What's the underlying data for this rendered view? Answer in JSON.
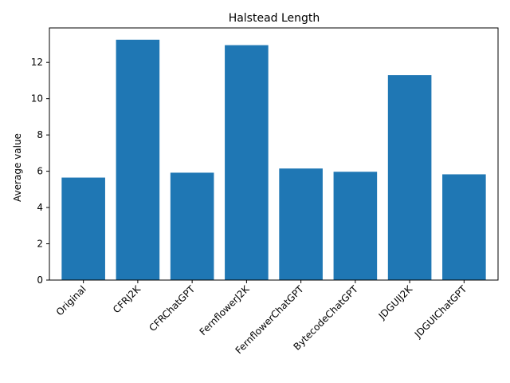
{
  "chart_data": {
    "type": "bar",
    "title": "Halstead Length",
    "xlabel": "",
    "ylabel": "Average value",
    "categories": [
      "Original",
      "CFRJ2K",
      "CFRChatGPT",
      "FernflowerJ2K",
      "FernflowerChatGPT",
      "BytecodeChatGPT",
      "JDGUIJ2K",
      "JDGUIChatGPT"
    ],
    "values": [
      5.65,
      13.25,
      5.92,
      12.95,
      6.15,
      5.97,
      11.3,
      5.83
    ],
    "ylim": [
      0,
      13.9
    ],
    "yticks": [
      0,
      2,
      4,
      6,
      8,
      10,
      12
    ],
    "bar_color": "#1f77b4",
    "grid": false,
    "legend": "none"
  }
}
